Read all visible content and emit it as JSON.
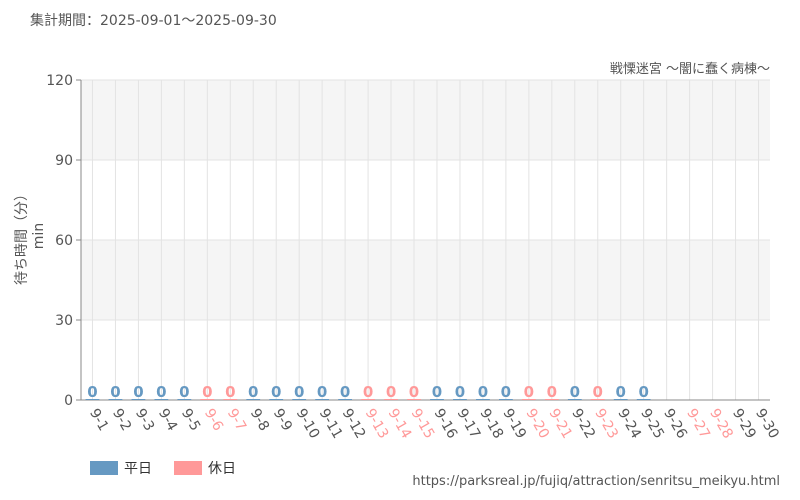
{
  "header": {
    "period": "集計期間：2025-09-01～2025-09-30",
    "attraction": "戦慄迷宮 ～闇に蠢く病棟～"
  },
  "legend": {
    "weekday": "平日",
    "holiday": "休日"
  },
  "footer": {
    "source_url": "https://parksreal.jp/fujiq/attraction/senritsu_meikyu.html"
  },
  "colors": {
    "weekday": "#6699c2",
    "holiday": "#ff9999",
    "axis_text": "#555555",
    "band": "#f5f5f5",
    "grid": "#e3e3e3"
  },
  "chart_data": {
    "type": "bar",
    "title": "戦慄迷宮 ～闇に蠢く病棟～",
    "ylabel": "待ち時間（分）min",
    "ylim": [
      0,
      120
    ],
    "yticks": [
      0,
      30,
      60,
      90,
      120
    ],
    "grid": true,
    "legend_position": "bottom-left",
    "categories": [
      "9-1",
      "9-2",
      "9-3",
      "9-4",
      "9-5",
      "9-6",
      "9-7",
      "9-8",
      "9-9",
      "9-10",
      "9-11",
      "9-12",
      "9-13",
      "9-14",
      "9-15",
      "9-16",
      "9-17",
      "9-18",
      "9-19",
      "9-20",
      "9-21",
      "9-22",
      "9-23",
      "9-24",
      "9-25",
      "9-26",
      "9-27",
      "9-28",
      "9-29",
      "9-30"
    ],
    "day_type": [
      "weekday",
      "weekday",
      "weekday",
      "weekday",
      "weekday",
      "holiday",
      "holiday",
      "weekday",
      "weekday",
      "weekday",
      "weekday",
      "weekday",
      "holiday",
      "holiday",
      "holiday",
      "weekday",
      "weekday",
      "weekday",
      "weekday",
      "holiday",
      "holiday",
      "weekday",
      "holiday",
      "weekday",
      "weekday",
      "weekday",
      "holiday",
      "holiday",
      "weekday",
      "weekday"
    ],
    "values": [
      0,
      0,
      0,
      0,
      0,
      0,
      0,
      0,
      0,
      0,
      0,
      0,
      0,
      0,
      0,
      0,
      0,
      0,
      0,
      0,
      0,
      0,
      0,
      0,
      0,
      null,
      null,
      null,
      null,
      null
    ],
    "value_labels": [
      "0",
      "0",
      "0",
      "0",
      "0",
      "0",
      "0",
      "0",
      "0",
      "0",
      "0",
      "0",
      "0",
      "0",
      "0",
      "0",
      "0",
      "0",
      "0",
      "0",
      "0",
      "0",
      "0",
      "0",
      "0",
      "",
      "",
      "",
      "",
      ""
    ]
  }
}
